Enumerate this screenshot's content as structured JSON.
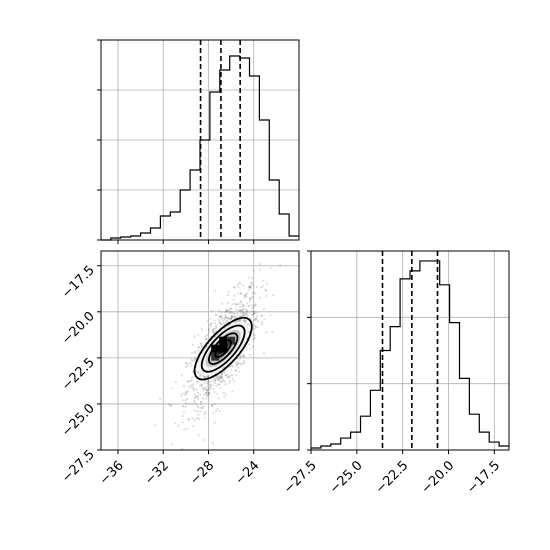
{
  "chart_data": {
    "type": "corner",
    "parameters": [
      {
        "index": 0,
        "range": [
          -37.5,
          -20.0
        ],
        "ticks": [
          -36,
          -32,
          -28,
          -24
        ],
        "tick_labels": [
          "−36",
          "−32",
          "−28",
          "−24"
        ],
        "quantiles": [
          -28.7,
          -26.9,
          -25.2
        ]
      },
      {
        "index": 1,
        "range": [
          -27.5,
          -16.7
        ],
        "ticks": [
          -27.5,
          -25.0,
          -22.5,
          -20.0,
          -17.5
        ],
        "tick_labels": [
          "−27.5",
          "−25.0",
          "−22.5",
          "−20.0",
          "−17.5"
        ],
        "quantiles": [
          -23.6,
          -22.0,
          -20.6
        ]
      }
    ],
    "hist_param0": {
      "bin_start": -37.5,
      "bin_width": 0.875,
      "counts": [
        0,
        0.01,
        0.015,
        0.02,
        0.035,
        0.06,
        0.12,
        0.14,
        0.25,
        0.35,
        0.5,
        0.74,
        0.85,
        0.92,
        0.91,
        0.82,
        0.6,
        0.3,
        0.13,
        0.02
      ]
    },
    "hist_param1": {
      "bin_start": -27.5,
      "bin_width": 0.54,
      "counts": [
        0.01,
        0.02,
        0.03,
        0.06,
        0.09,
        0.17,
        0.3,
        0.5,
        0.62,
        0.86,
        0.9,
        0.95,
        0.95,
        0.83,
        0.64,
        0.36,
        0.18,
        0.09,
        0.04,
        0.02
      ]
    },
    "scatter_2d": {
      "x_param": 0,
      "y_param": 1,
      "center": [
        -26.7,
        -22.0
      ],
      "sigma": [
        1.6,
        1.6
      ],
      "correlation": 0.72,
      "contour_levels_sigma": [
        0.5,
        1.0,
        1.5,
        2.0
      ]
    }
  }
}
